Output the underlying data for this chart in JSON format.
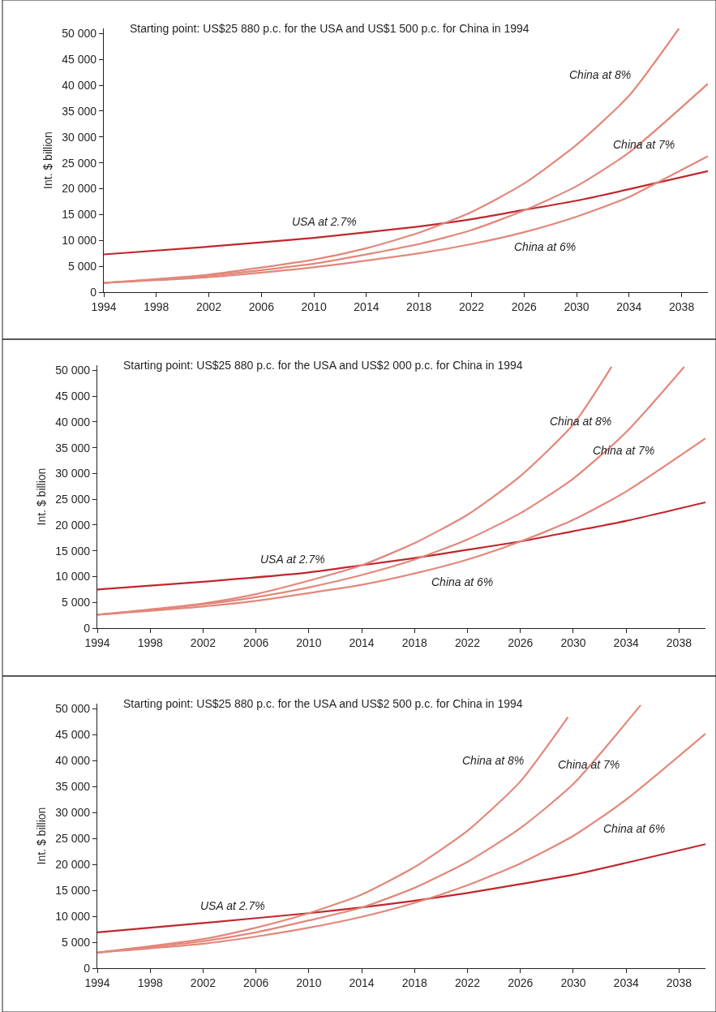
{
  "chart_data": [
    {
      "type": "line",
      "ylabel": "Int. $ billion",
      "xlim": [
        1994,
        2040
      ],
      "xticks": [
        1994,
        1998,
        2002,
        2006,
        2010,
        2014,
        2018,
        2022,
        2026,
        2030,
        2034,
        2038
      ],
      "ylim": [
        0,
        51000
      ],
      "yticks": [
        {
          "value": 0,
          "label": "0"
        },
        {
          "value": 5000,
          "label": "5 000"
        },
        {
          "value": 10000,
          "label": "10 000"
        },
        {
          "value": 15000,
          "label": "15 000"
        },
        {
          "value": 20000,
          "label": "20 000"
        },
        {
          "value": 25000,
          "label": "25 000"
        },
        {
          "value": 30000,
          "label": "30 000"
        },
        {
          "value": 35000,
          "label": "35 000"
        },
        {
          "value": 40000,
          "label": "40 000"
        },
        {
          "value": 45000,
          "label": "45 000"
        },
        {
          "value": 50000,
          "label": "50 000"
        }
      ],
      "legend": false,
      "marker": "none",
      "line_style": "solid",
      "series": [
        {
          "name": "USA at 2.7%",
          "color": "#c0272d",
          "x": [
            1994,
            2002,
            2010,
            2018,
            2022,
            2026,
            2030,
            2034,
            2040
          ],
          "values": [
            7300,
            8800,
            10500,
            12700,
            14100,
            15900,
            17700,
            19900,
            23400
          ]
        },
        {
          "name": "China at 8%",
          "color": "#e3877a",
          "x": [
            1994,
            2002,
            2010,
            2014,
            2018,
            2022,
            2026,
            2030,
            2034,
            2037.8
          ],
          "values": [
            1800,
            3400,
            6300,
            8500,
            11500,
            15500,
            21000,
            28500,
            38000,
            51000
          ]
        },
        {
          "name": "China at 7%",
          "color": "#e3877a",
          "x": [
            1994,
            2002,
            2010,
            2018,
            2022,
            2026,
            2030,
            2034,
            2040
          ],
          "values": [
            1800,
            3200,
            5500,
            9300,
            12000,
            15800,
            20500,
            27000,
            40300
          ]
        },
        {
          "name": "China at 6%",
          "color": "#e3877a",
          "x": [
            1994,
            2002,
            2010,
            2018,
            2022,
            2026,
            2030,
            2034,
            2036,
            2040
          ],
          "values": [
            1800,
            2900,
            4800,
            7500,
            9300,
            11600,
            14600,
            18400,
            21000,
            26300
          ]
        }
      ],
      "annotations": [
        "Starting point: US$25 880 p.c. for the USA and US$1 500 p.c. for China in 1994"
      ]
    },
    {
      "type": "line",
      "ylabel": "Int. $ billion",
      "xlim": [
        1994,
        2040
      ],
      "xticks": [
        1994,
        1998,
        2002,
        2006,
        2010,
        2014,
        2018,
        2022,
        2026,
        2030,
        2034,
        2038
      ],
      "ylim": [
        0,
        51000
      ],
      "yticks": [
        {
          "value": 0,
          "label": "0"
        },
        {
          "value": 5000,
          "label": "5 000"
        },
        {
          "value": 10000,
          "label": "10 000"
        },
        {
          "value": 15000,
          "label": "15 000"
        },
        {
          "value": 20000,
          "label": "20 000"
        },
        {
          "value": 25000,
          "label": "25 000"
        },
        {
          "value": 30000,
          "label": "30 000"
        },
        {
          "value": 35000,
          "label": "35 000"
        },
        {
          "value": 40000,
          "label": "40 000"
        },
        {
          "value": 45000,
          "label": "45 000"
        },
        {
          "value": 50000,
          "label": "50 000"
        }
      ],
      "legend": false,
      "marker": "none",
      "line_style": "solid",
      "series": [
        {
          "name": "USA at 2.7%",
          "color": "#c0272d",
          "x": [
            1994,
            2002,
            2010,
            2014,
            2018,
            2022,
            2026,
            2030,
            2034,
            2040
          ],
          "values": [
            7500,
            9000,
            10800,
            12200,
            13600,
            15200,
            16800,
            18800,
            20800,
            24400
          ]
        },
        {
          "name": "China at 8%",
          "color": "#e3877a",
          "x": [
            1994,
            2002,
            2006,
            2010,
            2014,
            2018,
            2022,
            2026,
            2030,
            2032.9
          ],
          "values": [
            2600,
            4800,
            6600,
            9200,
            12200,
            16500,
            22000,
            29500,
            39500,
            50700
          ]
        },
        {
          "name": "China at 7%",
          "color": "#e3877a",
          "x": [
            1994,
            2002,
            2006,
            2010,
            2014,
            2018,
            2022,
            2026,
            2030,
            2034,
            2038.4
          ],
          "values": [
            2600,
            4600,
            6000,
            7900,
            10300,
            13300,
            17200,
            22300,
            29000,
            38000,
            50700
          ]
        },
        {
          "name": "China at 6%",
          "color": "#e3877a",
          "x": [
            1994,
            2002,
            2006,
            2010,
            2014,
            2018,
            2022,
            2026,
            2030,
            2034,
            2040
          ],
          "values": [
            2600,
            4200,
            5300,
            6800,
            8400,
            10600,
            13300,
            16800,
            21000,
            26500,
            36800
          ]
        }
      ],
      "annotations": [
        "Starting point: US$25 880 p.c. for the USA and US$2 000 p.c. for China in 1994"
      ]
    },
    {
      "type": "line",
      "ylabel": "Int. $ billion",
      "xlim": [
        1994,
        2040
      ],
      "xticks": [
        1994,
        1998,
        2002,
        2006,
        2010,
        2014,
        2018,
        2022,
        2026,
        2030,
        2034,
        2038
      ],
      "ylim": [
        0,
        51000
      ],
      "yticks": [
        {
          "value": 0,
          "label": "0"
        },
        {
          "value": 5000,
          "label": "5 000"
        },
        {
          "value": 10000,
          "label": "10 000"
        },
        {
          "value": 15000,
          "label": "15 000"
        },
        {
          "value": 20000,
          "label": "20 000"
        },
        {
          "value": 25000,
          "label": "25 000"
        },
        {
          "value": 30000,
          "label": "30 000"
        },
        {
          "value": 35000,
          "label": "35 000"
        },
        {
          "value": 40000,
          "label": "40 000"
        },
        {
          "value": 45000,
          "label": "45 000"
        },
        {
          "value": 50000,
          "label": "50 000"
        }
      ],
      "legend": false,
      "marker": "none",
      "line_style": "solid",
      "series": [
        {
          "name": "USA at 2.7%",
          "color": "#c0272d",
          "x": [
            1994,
            2002,
            2010,
            2014,
            2018,
            2022,
            2026,
            2030,
            2034,
            2040
          ],
          "values": [
            6900,
            8700,
            10600,
            11700,
            13000,
            14500,
            16200,
            18000,
            20300,
            23900
          ]
        },
        {
          "name": "China at 8%",
          "color": "#e3877a",
          "x": [
            1994,
            2002,
            2006,
            2010,
            2014,
            2018,
            2022,
            2026,
            2029.6
          ],
          "values": [
            3000,
            5600,
            7800,
            10600,
            14200,
            19500,
            26500,
            36000,
            48400
          ]
        },
        {
          "name": "China at 7%",
          "color": "#e3877a",
          "x": [
            1994,
            2002,
            2006,
            2010,
            2014,
            2018,
            2022,
            2026,
            2030,
            2035.1
          ],
          "values": [
            3000,
            5200,
            6900,
            9200,
            11700,
            15500,
            20500,
            27000,
            35500,
            50700
          ]
        },
        {
          "name": "China at 6%",
          "color": "#e3877a",
          "x": [
            1994,
            2002,
            2006,
            2010,
            2014,
            2018,
            2022,
            2026,
            2030,
            2034,
            2040
          ],
          "values": [
            3000,
            4700,
            6100,
            7800,
            9900,
            12600,
            16000,
            20200,
            25500,
            32500,
            45200
          ]
        }
      ],
      "annotations": [
        "Starting point: US$25 880 p.c. for the USA and US$2 500 p.c. for China in 1994"
      ]
    }
  ]
}
